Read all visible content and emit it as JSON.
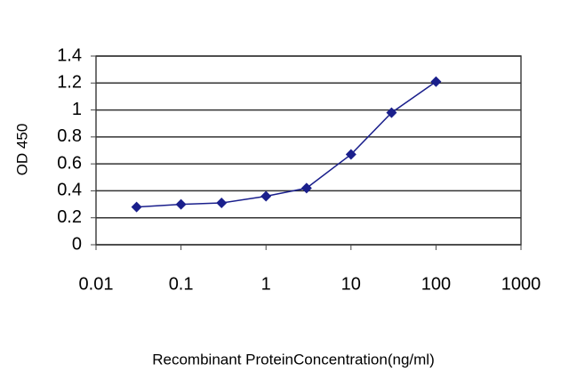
{
  "chart_data": {
    "type": "line",
    "x_label": "Recombinant ProteinConcentration(ng/ml)",
    "y_label": "OD 450",
    "x": [
      0.03,
      0.1,
      0.3,
      1,
      3,
      10,
      30,
      100
    ],
    "series": [
      {
        "color": "#1a1f8c",
        "values": [
          0.28,
          0.3,
          0.31,
          0.36,
          0.42,
          0.67,
          0.98,
          1.21
        ]
      }
    ],
    "xscale": "log",
    "xlim": [
      0.01,
      1000
    ],
    "xticks": [
      0.01,
      0.1,
      1,
      10,
      100,
      1000
    ],
    "ylim": [
      0,
      1.4
    ],
    "yticks": [
      0,
      0.2,
      0.4,
      0.6,
      0.8,
      1,
      1.2,
      1.4
    ],
    "grid": true
  }
}
